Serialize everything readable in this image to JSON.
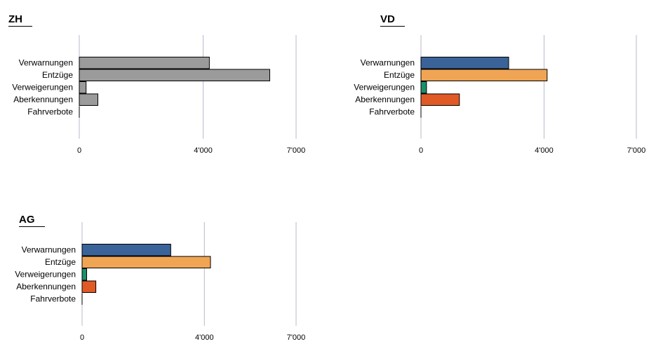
{
  "chart_data": [
    {
      "type": "bar",
      "title": "ZH",
      "categories": [
        "Verwarnungen",
        "Entzüge",
        "Verweigerungen",
        "Aberkennungen",
        "Fahrverbote"
      ],
      "values": [
        4200,
        6150,
        220,
        600,
        0
      ],
      "colors": [
        "#9b9b9b",
        "#9b9b9b",
        "#9b9b9b",
        "#9b9b9b",
        "#9b9b9b"
      ],
      "xticks": [
        0,
        4000,
        7000
      ],
      "xtick_labels": [
        "0",
        "4'000",
        "7'000"
      ],
      "xlim": [
        0,
        7000
      ],
      "grid": true,
      "orientation": "horizontal"
    },
    {
      "type": "bar",
      "title": "VD",
      "categories": [
        "Verwarnungen",
        "Entzüge",
        "Verweigerungen",
        "Aberkennungen",
        "Fahrverbote"
      ],
      "values": [
        2850,
        4100,
        180,
        1250,
        0
      ],
      "colors": [
        "#3a6399",
        "#f0a554",
        "#1b8f6a",
        "#e05a26",
        "#3a6399"
      ],
      "xticks": [
        0,
        4000,
        7000
      ],
      "xtick_labels": [
        "0",
        "4'000",
        "7'000"
      ],
      "xlim": [
        0,
        7000
      ],
      "grid": true,
      "orientation": "horizontal"
    },
    {
      "type": "bar",
      "title": "AG",
      "categories": [
        "Verwarnungen",
        "Entzüge",
        "Verweigerungen",
        "Aberkennungen",
        "Fahrverbote"
      ],
      "values": [
        2900,
        4200,
        150,
        450,
        0
      ],
      "colors": [
        "#3a6399",
        "#f0a554",
        "#1b8f6a",
        "#e05a26",
        "#3a6399"
      ],
      "xticks": [
        0,
        4000,
        7000
      ],
      "xtick_labels": [
        "0",
        "4'000",
        "7'000"
      ],
      "xlim": [
        0,
        7000
      ],
      "grid": true,
      "orientation": "horizontal"
    }
  ]
}
